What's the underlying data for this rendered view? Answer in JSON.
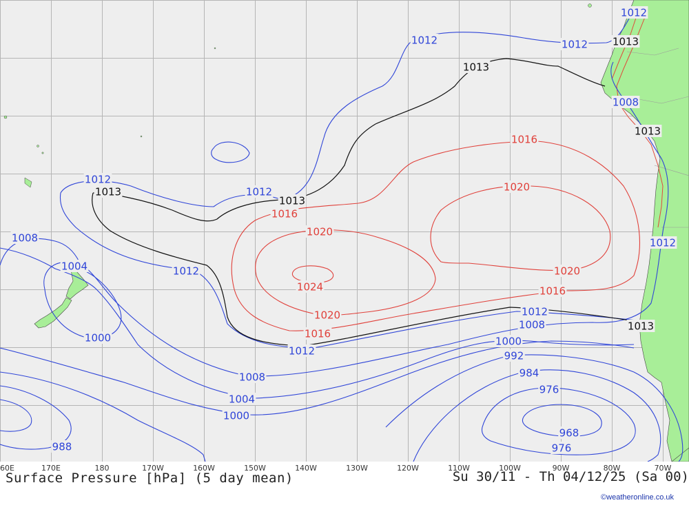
{
  "footer": {
    "title": "Surface Pressure [hPa] (5 day mean)",
    "date_range": "Su 30/11 - Th 04/12/25 (Sa 00)",
    "credit": "©weatheronline.co.uk"
  },
  "colors": {
    "ocean": "#eeeeee",
    "land": "#a8ee98",
    "grid": "#b5b5b5",
    "low_isobar": "#2f45d8",
    "high_isobar": "#e0403a",
    "ref_isobar": "#111111"
  },
  "longitude_ticks": [
    "60E",
    "170E",
    "180",
    "170W",
    "160W",
    "150W",
    "140W",
    "130W",
    "120W",
    "110W",
    "100W",
    "90W",
    "80W",
    "70W"
  ],
  "isobar_labels": [
    {
      "text": "1012",
      "kind": "low"
    },
    {
      "text": "1012",
      "kind": "low"
    },
    {
      "text": "1013",
      "kind": "ref"
    },
    {
      "text": "1013",
      "kind": "ref"
    },
    {
      "text": "1008",
      "kind": "low"
    },
    {
      "text": "1013",
      "kind": "ref"
    },
    {
      "text": "1016",
      "kind": "high"
    },
    {
      "text": "1020",
      "kind": "high"
    },
    {
      "text": "1012",
      "kind": "low"
    },
    {
      "text": "1012",
      "kind": "low"
    },
    {
      "text": "1013",
      "kind": "ref"
    },
    {
      "text": "1013",
      "kind": "ref"
    },
    {
      "text": "1008",
      "kind": "low"
    },
    {
      "text": "1004",
      "kind": "low"
    },
    {
      "text": "1012",
      "kind": "low"
    },
    {
      "text": "1016",
      "kind": "high"
    },
    {
      "text": "1020",
      "kind": "high"
    },
    {
      "text": "1024",
      "kind": "high"
    },
    {
      "text": "1020",
      "kind": "high"
    },
    {
      "text": "1016",
      "kind": "high"
    },
    {
      "text": "1012",
      "kind": "low"
    },
    {
      "text": "1000",
      "kind": "low"
    },
    {
      "text": "1020",
      "kind": "high"
    },
    {
      "text": "1016",
      "kind": "high"
    },
    {
      "text": "1012",
      "kind": "low"
    },
    {
      "text": "1012",
      "kind": "low"
    },
    {
      "text": "1008",
      "kind": "low"
    },
    {
      "text": "1013",
      "kind": "ref"
    },
    {
      "text": "1000",
      "kind": "low"
    },
    {
      "text": "992",
      "kind": "low"
    },
    {
      "text": "984",
      "kind": "low"
    },
    {
      "text": "976",
      "kind": "low"
    },
    {
      "text": "968",
      "kind": "low"
    },
    {
      "text": "976",
      "kind": "low"
    },
    {
      "text": "1008",
      "kind": "low"
    },
    {
      "text": "1004",
      "kind": "low"
    },
    {
      "text": "1000",
      "kind": "low"
    },
    {
      "text": "988",
      "kind": "low"
    },
    {
      "text": "1012",
      "kind": "low"
    }
  ]
}
